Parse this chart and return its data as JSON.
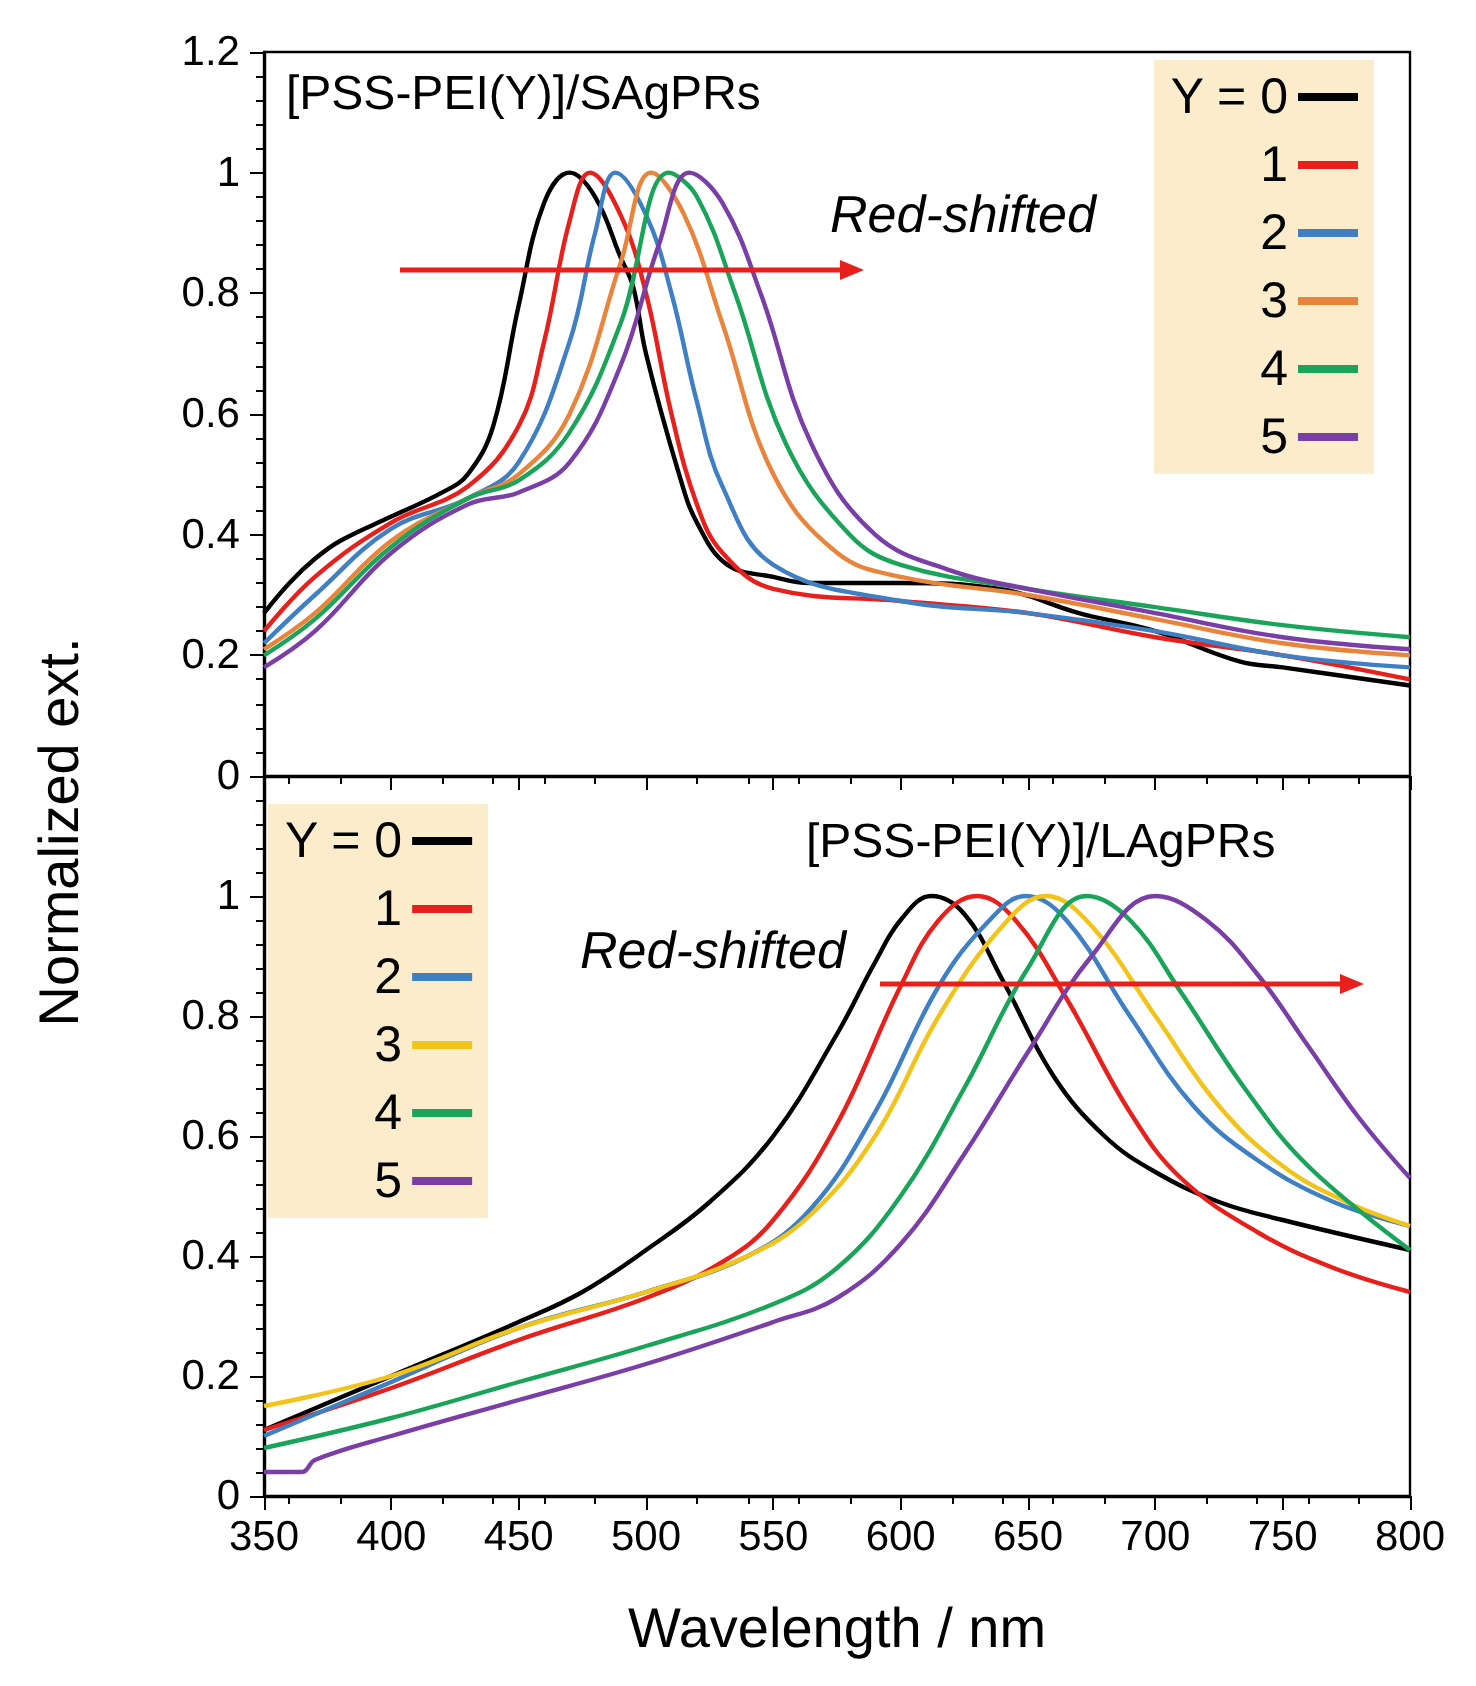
{
  "chart_data": [
    {
      "type": "line",
      "title": "[PSS-PEI(Y)]/SAgPRs",
      "ylabel": "Normalized ext.",
      "annotations": [
        "Red-shifted"
      ],
      "legend": "top right",
      "grid": false,
      "marker": "none",
      "line_style": "solid",
      "tick_labels": "y",
      "xlim": [
        350,
        800
      ],
      "xticks": [
        350,
        400,
        450,
        500,
        550,
        600,
        650,
        700,
        750,
        800
      ],
      "ylim": [
        0,
        1.2
      ],
      "yticks": [
        0,
        0.2,
        0.4,
        0.6,
        0.8,
        1,
        1.2
      ],
      "series": [
        {
          "name": "Y = 0",
          "color": "#000000",
          "x": [
            350,
            360,
            370,
            380,
            400,
            420,
            430,
            440,
            450,
            460,
            470,
            480,
            490,
            495,
            500,
            513,
            520,
            532,
            550,
            564,
            600,
            639,
            670,
            700,
            733,
            750,
            800
          ],
          "values": [
            0.27,
            0.32,
            0.36,
            0.39,
            0.43,
            0.47,
            0.5,
            0.58,
            0.78,
            0.95,
            1.0,
            0.96,
            0.86,
            0.81,
            0.7,
            0.5,
            0.42,
            0.35,
            0.33,
            0.32,
            0.32,
            0.31,
            0.27,
            0.24,
            0.19,
            0.18,
            0.15
          ]
        },
        {
          "name": "1",
          "color": "#e8201c",
          "x": [
            350,
            370,
            400,
            430,
            450,
            460,
            470,
            478,
            490,
            500,
            510,
            520,
            530,
            550,
            600,
            650,
            700,
            750,
            800
          ],
          "values": [
            0.24,
            0.33,
            0.42,
            0.48,
            0.58,
            0.72,
            0.92,
            1.0,
            0.93,
            0.8,
            0.6,
            0.45,
            0.37,
            0.31,
            0.29,
            0.27,
            0.23,
            0.2,
            0.16
          ]
        },
        {
          "name": "2",
          "color": "#3f7fc4",
          "x": [
            350,
            370,
            400,
            430,
            450,
            470,
            480,
            488,
            500,
            510,
            520,
            530,
            550,
            600,
            650,
            700,
            750,
            800
          ],
          "values": [
            0.22,
            0.3,
            0.41,
            0.46,
            0.52,
            0.72,
            0.9,
            1.0,
            0.93,
            0.8,
            0.62,
            0.48,
            0.35,
            0.29,
            0.27,
            0.24,
            0.2,
            0.18
          ]
        },
        {
          "name": "3",
          "color": "#e8843c",
          "x": [
            350,
            370,
            400,
            430,
            450,
            470,
            490,
            502,
            515,
            530,
            550,
            575,
            600,
            650,
            700,
            750,
            800
          ],
          "values": [
            0.21,
            0.27,
            0.39,
            0.46,
            0.5,
            0.6,
            0.85,
            1.0,
            0.93,
            0.75,
            0.5,
            0.37,
            0.33,
            0.3,
            0.26,
            0.22,
            0.2
          ]
        },
        {
          "name": "4",
          "color": "#1aa45a",
          "x": [
            350,
            370,
            400,
            430,
            450,
            470,
            490,
            509,
            520,
            535,
            555,
            580,
            600,
            650,
            700,
            750,
            800
          ],
          "values": [
            0.2,
            0.26,
            0.38,
            0.46,
            0.49,
            0.57,
            0.75,
            1.0,
            0.96,
            0.8,
            0.55,
            0.4,
            0.35,
            0.31,
            0.28,
            0.25,
            0.23
          ]
        },
        {
          "name": "5",
          "color": "#7a3fa6",
          "x": [
            350,
            370,
            400,
            430,
            450,
            470,
            490,
            505,
            517,
            530,
            545,
            565,
            590,
            620,
            650,
            700,
            750,
            800
          ],
          "values": [
            0.18,
            0.24,
            0.37,
            0.45,
            0.47,
            0.52,
            0.68,
            0.88,
            1.0,
            0.95,
            0.8,
            0.55,
            0.4,
            0.34,
            0.31,
            0.27,
            0.23,
            0.21
          ]
        }
      ]
    },
    {
      "type": "line",
      "title": "[PSS-PEI(Y)]/LAgPRs",
      "xlabel": "Wavelength / nm",
      "annotations": [
        "Red-shifted"
      ],
      "legend": "top left",
      "grid": false,
      "marker": "none",
      "line_style": "solid",
      "xlim": [
        350,
        800
      ],
      "xticks": [
        350,
        400,
        450,
        500,
        550,
        600,
        650,
        700,
        750,
        800
      ],
      "ylim": [
        0,
        1.2
      ],
      "yticks": [
        0,
        0.2,
        0.4,
        0.6,
        0.8,
        1,
        {
          "value": 1.2,
          "label": null
        }
      ],
      "series": [
        {
          "name": "Y = 0",
          "color": "#000000",
          "x": [
            350,
            400,
            450,
            475,
            500,
            525,
            550,
            575,
            590,
            600,
            612,
            625,
            640,
            660,
            680,
            700,
            725,
            750,
            800
          ],
          "values": [
            0.11,
            0.2,
            0.29,
            0.34,
            0.41,
            0.49,
            0.6,
            0.77,
            0.89,
            0.96,
            1.0,
            0.97,
            0.86,
            0.7,
            0.6,
            0.54,
            0.49,
            0.46,
            0.41
          ]
        },
        {
          "name": "1",
          "color": "#e8201c",
          "x": [
            350,
            400,
            450,
            500,
            530,
            550,
            575,
            600,
            615,
            630,
            645,
            665,
            690,
            710,
            740,
            770,
            800
          ],
          "values": [
            0.11,
            0.18,
            0.26,
            0.33,
            0.39,
            0.46,
            0.62,
            0.85,
            0.96,
            1.0,
            0.96,
            0.83,
            0.64,
            0.53,
            0.44,
            0.38,
            0.34
          ]
        },
        {
          "name": "2",
          "color": "#3f7fc4",
          "x": [
            350,
            400,
            450,
            500,
            540,
            565,
            590,
            615,
            635,
            649,
            665,
            690,
            715,
            740,
            770,
            800
          ],
          "values": [
            0.1,
            0.19,
            0.28,
            0.34,
            0.4,
            0.48,
            0.64,
            0.85,
            0.96,
            1.0,
            0.96,
            0.8,
            0.65,
            0.56,
            0.49,
            0.45
          ]
        },
        {
          "name": "3",
          "color": "#f2c318",
          "x": [
            350,
            400,
            450,
            500,
            540,
            565,
            590,
            615,
            640,
            657,
            675,
            700,
            725,
            750,
            775,
            800
          ],
          "values": [
            0.15,
            0.2,
            0.28,
            0.34,
            0.4,
            0.47,
            0.6,
            0.8,
            0.95,
            1.0,
            0.95,
            0.8,
            0.65,
            0.55,
            0.49,
            0.45
          ]
        },
        {
          "name": "4",
          "color": "#1aa45a",
          "x": [
            350,
            400,
            450,
            500,
            550,
            575,
            600,
            625,
            650,
            673,
            690,
            710,
            735,
            760,
            800
          ],
          "values": [
            0.08,
            0.13,
            0.19,
            0.25,
            0.32,
            0.38,
            0.5,
            0.68,
            0.88,
            1.0,
            0.96,
            0.84,
            0.68,
            0.55,
            0.41
          ]
        },
        {
          "name": "5",
          "color": "#7a3fa6",
          "x": [
            350,
            365,
            370,
            400,
            450,
            500,
            550,
            575,
            600,
            625,
            650,
            675,
            700,
            720,
            740,
            760,
            780,
            800
          ],
          "values": [
            0.04,
            0.04,
            0.06,
            0.1,
            0.16,
            0.22,
            0.29,
            0.33,
            0.42,
            0.57,
            0.74,
            0.9,
            1.0,
            0.96,
            0.87,
            0.75,
            0.63,
            0.53
          ]
        }
      ]
    }
  ]
}
